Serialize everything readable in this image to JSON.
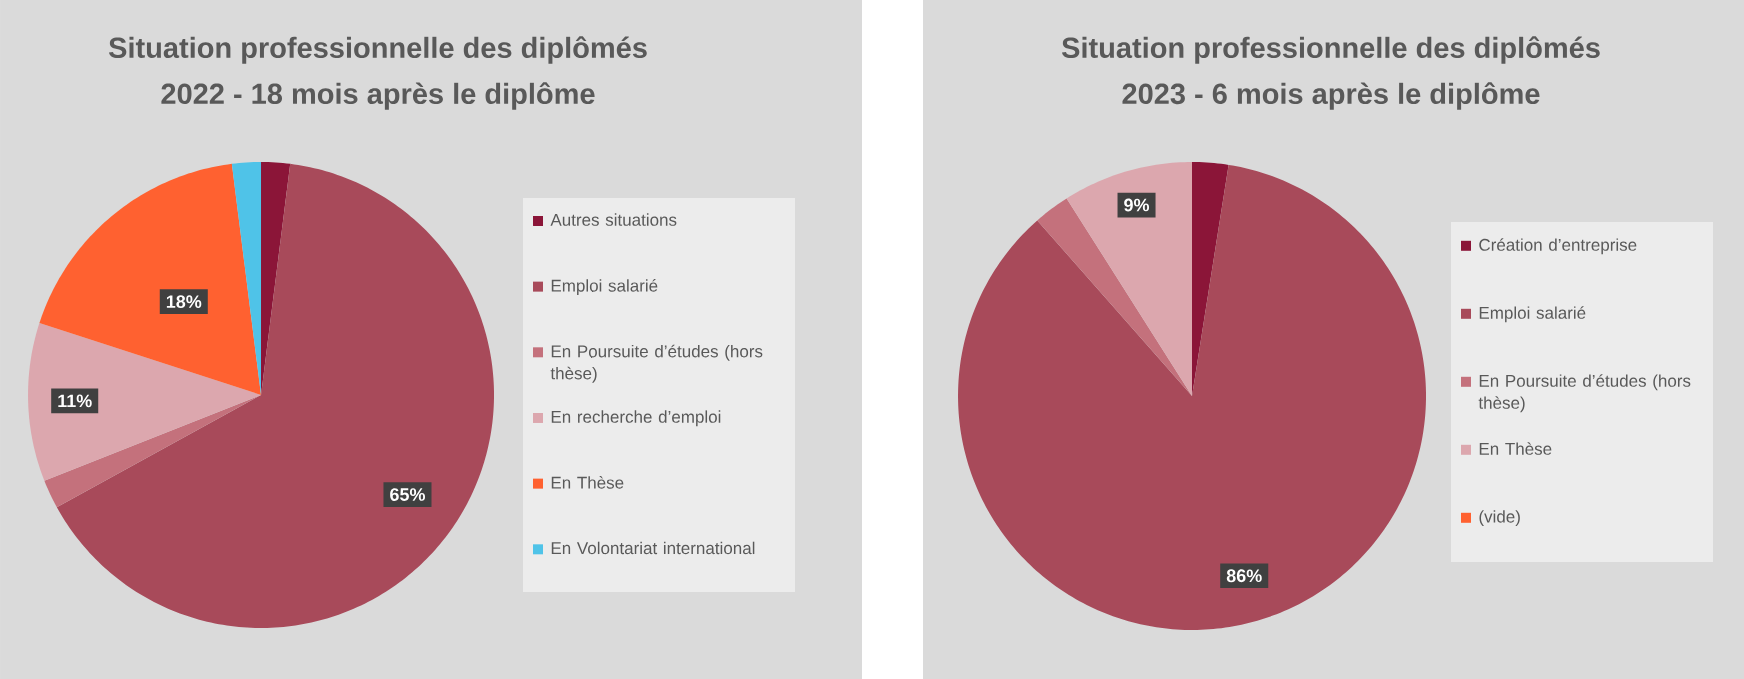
{
  "chart_data": [
    {
      "type": "pie",
      "title": "Situation professionnelle des diplômés",
      "subtitle": "2022 - 18 mois après le diplôme",
      "categories": [
        "Autres situations",
        "Emploi salarié",
        "En Poursuite d’études (hors thèse)",
        "En recherche d’emploi",
        "En Thèse",
        "En Volontariat international"
      ],
      "values": [
        2,
        65,
        2,
        11,
        18,
        2
      ],
      "colors": [
        "#8b1538",
        "#a84a5a",
        "#c4717c",
        "#dca7ae",
        "#ff6130",
        "#4fc3e8"
      ],
      "value_labels": [
        null,
        "65%",
        null,
        "11%",
        "18%",
        null
      ],
      "legend": "right"
    },
    {
      "type": "pie",
      "title": "Situation professionnelle des diplômés",
      "subtitle": "2023 - 6 mois après le diplôme",
      "categories": [
        "Création d’entreprise",
        "Emploi salarié",
        "En Poursuite d’études (hors thèse)",
        "En Thèse",
        "(vide)"
      ],
      "values": [
        2.5,
        86,
        2.5,
        9,
        0
      ],
      "colors": [
        "#8b1538",
        "#a84a5a",
        "#c4717c",
        "#dca7ae",
        "#ff6130"
      ],
      "value_labels": [
        null,
        "86%",
        null,
        "9%",
        null
      ],
      "legend": "right"
    }
  ]
}
